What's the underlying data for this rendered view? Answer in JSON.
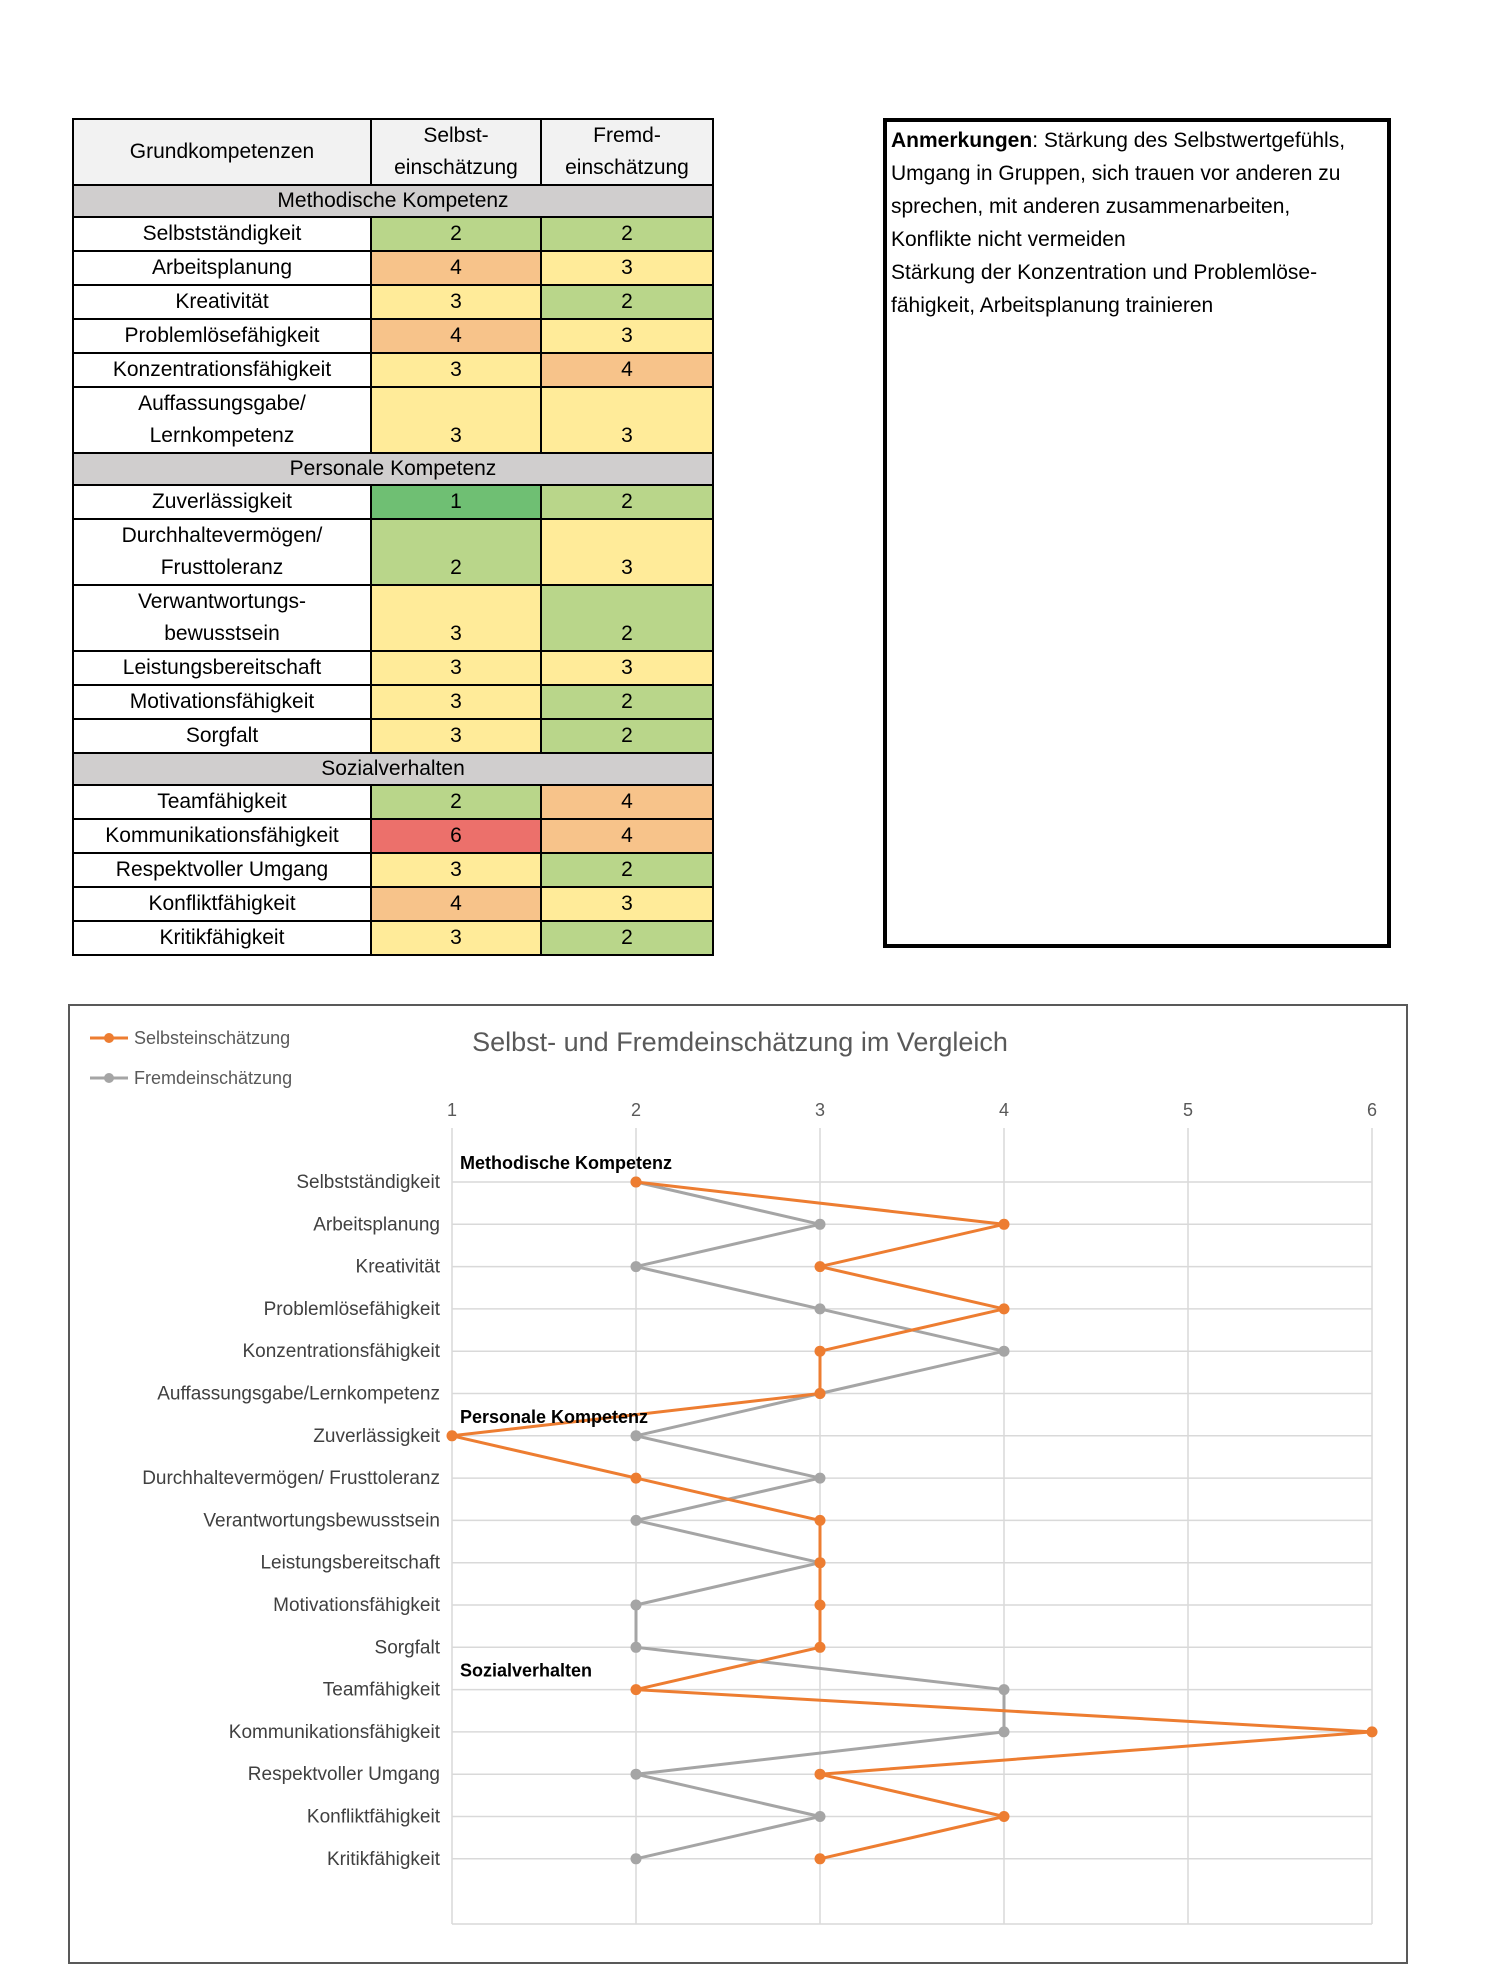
{
  "table": {
    "headers": {
      "name": "Grundkompetenzen",
      "self_line1": "Selbst-",
      "self_line2": "einschätzung",
      "other_line1": "Fremd-",
      "other_line2": "einschätzung"
    },
    "sections": [
      {
        "title": "Methodische Kompetenz",
        "rows": [
          {
            "name": [
              "Selbstständigkeit"
            ],
            "self": 2,
            "other": 2
          },
          {
            "name": [
              "Arbeitsplanung"
            ],
            "self": 4,
            "other": 3
          },
          {
            "name": [
              "Kreativität"
            ],
            "self": 3,
            "other": 2
          },
          {
            "name": [
              "Problemlösefähigkeit"
            ],
            "self": 4,
            "other": 3
          },
          {
            "name": [
              "Konzentrationsfähigkeit"
            ],
            "self": 3,
            "other": 4
          },
          {
            "name": [
              "Auffassungsgabe/",
              "Lernkompetenz"
            ],
            "self": 3,
            "other": 3
          }
        ]
      },
      {
        "title": "Personale Kompetenz",
        "rows": [
          {
            "name": [
              "Zuverlässigkeit"
            ],
            "self": 1,
            "other": 2
          },
          {
            "name": [
              "Durchhaltevermögen/",
              "Frusttoleranz"
            ],
            "self": 2,
            "other": 3
          },
          {
            "name": [
              "Verwantwortungs-",
              "bewusstsein"
            ],
            "self": 3,
            "other": 2
          },
          {
            "name": [
              "Leistungsbereitschaft"
            ],
            "self": 3,
            "other": 3
          },
          {
            "name": [
              "Motivationsfähigkeit"
            ],
            "self": 3,
            "other": 2
          },
          {
            "name": [
              "Sorgfalt"
            ],
            "self": 3,
            "other": 2
          }
        ]
      },
      {
        "title": "Sozialverhalten",
        "rows": [
          {
            "name": [
              "Teamfähigkeit"
            ],
            "self": 2,
            "other": 4
          },
          {
            "name": [
              "Kommunikationsfähigkeit"
            ],
            "self": 6,
            "other": 4
          },
          {
            "name": [
              "Respektvoller Umgang"
            ],
            "self": 3,
            "other": 2
          },
          {
            "name": [
              "Konfliktfähigkeit"
            ],
            "self": 4,
            "other": 3
          },
          {
            "name": [
              "Kritikfähigkeit"
            ],
            "self": 3,
            "other": 2
          }
        ]
      }
    ],
    "value_colors": {
      "1": "#6fbf73",
      "2": "#b9d68a",
      "3": "#ffeb99",
      "4": "#f7c38a",
      "6": "#ec706b"
    }
  },
  "remarks": {
    "label": "Anmerkungen",
    "lines": [
      ":  Stärkung des Selbstwertgefühls,",
      "Umgang in Gruppen, sich trauen vor anderen zu",
      "sprechen, mit anderen zusammenarbeiten,",
      "Konflikte nicht vermeiden",
      "Stärkung der Konzentration und Problemlöse-",
      "fähigkeit, Arbeitsplanung trainieren"
    ]
  },
  "chart_data": {
    "type": "line",
    "title": "Selbst- und Fremdeinschätzung im Vergleich",
    "orientation": "horizontal",
    "xlim": [
      1,
      6
    ],
    "xticks": [
      1,
      2,
      3,
      4,
      5,
      6
    ],
    "grid": true,
    "legend": "top-left",
    "categories": [
      "Selbstständigkeit",
      "Arbeitsplanung",
      "Kreativität",
      "Problemlösefähigkeit",
      "Konzentrationsfähigkeit",
      "Auffassungsgabe/Lernkompetenz",
      "Zuverlässigkeit",
      "Durchhaltevermögen/ Frusttoleranz",
      "Verantwortungsbewusstsein",
      "Leistungsbereitschaft",
      "Motivationsfähigkeit",
      "Sorgfalt",
      "Teamfähigkeit",
      "Kommunikationsfähigkeit",
      "Respektvoller Umgang",
      "Konfliktfähigkeit",
      "Kritikfähigkeit"
    ],
    "series": [
      {
        "name": "Selbsteinschätzung",
        "color": "#ed7d31",
        "values": [
          2,
          4,
          3,
          4,
          3,
          3,
          1,
          2,
          3,
          3,
          3,
          3,
          2,
          6,
          3,
          4,
          3
        ]
      },
      {
        "name": "Fremdeinschätzung",
        "color": "#a5a5a5",
        "values": [
          2,
          3,
          2,
          3,
          4,
          3,
          2,
          3,
          2,
          3,
          2,
          2,
          4,
          4,
          2,
          3,
          2
        ]
      }
    ],
    "annotations": [
      {
        "text": "Methodische Kompetenz",
        "category_index": 0
      },
      {
        "text": "Personale Kompetenz",
        "category_index": 6
      },
      {
        "text": "Sozialverhalten",
        "category_index": 12
      }
    ]
  }
}
